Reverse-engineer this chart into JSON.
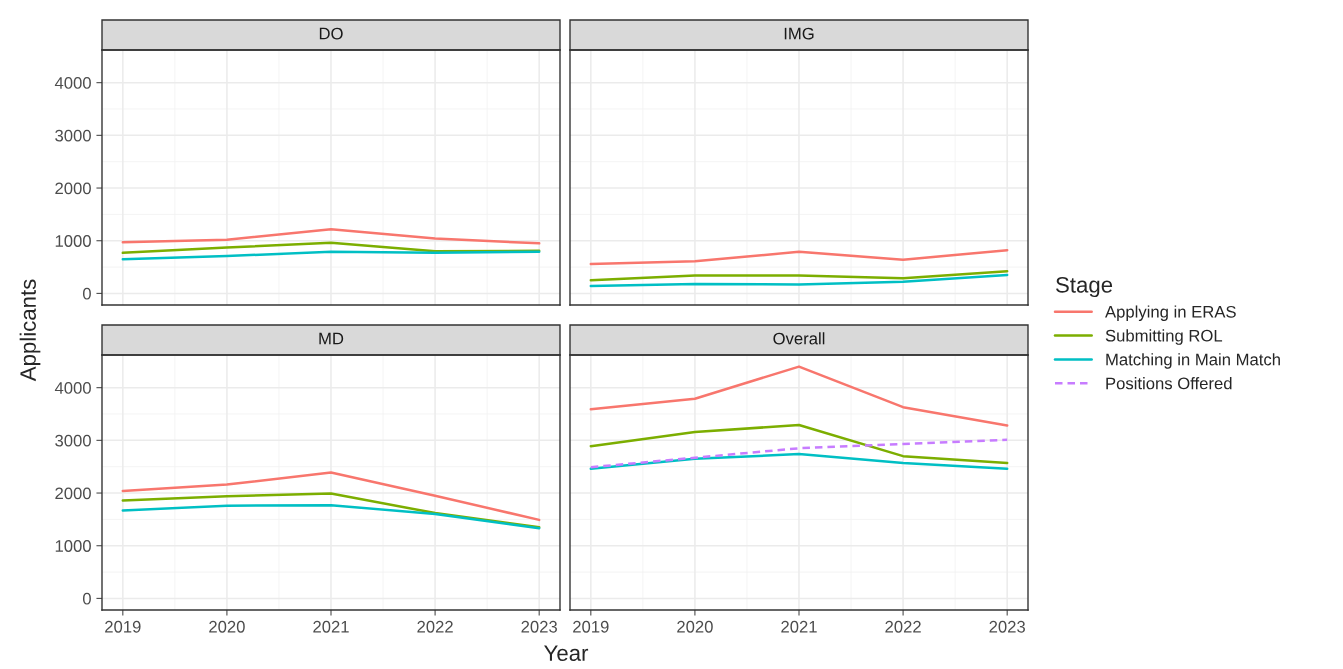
{
  "chart_data": [
    {
      "type": "line",
      "title": "DO",
      "ylabel": "Applicants",
      "x": [
        2019,
        2020,
        2021,
        2022,
        2023
      ],
      "xlim": [
        2018.8,
        2023.2
      ],
      "xticks": [
        2019,
        2020,
        2021,
        2022,
        2023
      ],
      "ylim": [
        -220,
        4620
      ],
      "yticks": [
        0,
        1000,
        2000,
        3000,
        4000
      ],
      "grid": true,
      "tick_labels": "y",
      "series": [
        {
          "color": "#f8766d",
          "values": [
            970,
            1020,
            1220,
            1040,
            950
          ]
        },
        {
          "color": "#7cae00",
          "values": [
            770,
            870,
            960,
            800,
            810
          ]
        },
        {
          "color": "#00bfc4",
          "values": [
            650,
            710,
            790,
            770,
            790
          ]
        }
      ]
    },
    {
      "type": "line",
      "title": "IMG",
      "x": [
        2019,
        2020,
        2021,
        2022,
        2023
      ],
      "xlim": [
        2018.8,
        2023.2
      ],
      "xticks": [
        2019,
        2020,
        2021,
        2022,
        2023
      ],
      "ylim": [
        -220,
        4620
      ],
      "yticks": [
        0,
        1000,
        2000,
        3000,
        4000
      ],
      "grid": true,
      "tick_labels": false,
      "series": [
        {
          "color": "#f8766d",
          "values": [
            560,
            610,
            790,
            640,
            820
          ]
        },
        {
          "color": "#7cae00",
          "values": [
            250,
            340,
            340,
            290,
            420
          ]
        },
        {
          "color": "#00bfc4",
          "values": [
            140,
            180,
            170,
            220,
            350
          ]
        }
      ]
    },
    {
      "type": "line",
      "title": "MD",
      "xlabel": "Year",
      "x": [
        2019,
        2020,
        2021,
        2022,
        2023
      ],
      "xlim": [
        2018.8,
        2023.2
      ],
      "xticks": [
        2019,
        2020,
        2021,
        2022,
        2023
      ],
      "ylim": [
        -220,
        4620
      ],
      "yticks": [
        0,
        1000,
        2000,
        3000,
        4000
      ],
      "grid": true,
      "series": [
        {
          "color": "#f8766d",
          "values": [
            2040,
            2160,
            2390,
            1950,
            1490
          ]
        },
        {
          "color": "#7cae00",
          "values": [
            1860,
            1940,
            1990,
            1620,
            1350
          ]
        },
        {
          "color": "#00bfc4",
          "values": [
            1670,
            1760,
            1770,
            1600,
            1330
          ]
        }
      ]
    },
    {
      "type": "line",
      "title": "Overall",
      "legend_title": "Stage",
      "legend": "right",
      "x": [
        2019,
        2020,
        2021,
        2022,
        2023
      ],
      "xlim": [
        2018.8,
        2023.2
      ],
      "xticks": [
        2019,
        2020,
        2021,
        2022,
        2023
      ],
      "ylim": [
        -220,
        4620
      ],
      "yticks": [
        0,
        1000,
        2000,
        3000,
        4000
      ],
      "grid": true,
      "tick_labels": "x",
      "series": [
        {
          "name": "Applying in ERAS",
          "color": "#f8766d",
          "values": [
            3590,
            3790,
            4400,
            3630,
            3280
          ]
        },
        {
          "name": "Submitting ROL",
          "color": "#7cae00",
          "values": [
            2890,
            3160,
            3290,
            2700,
            2570
          ]
        },
        {
          "name": "Matching in Main Match",
          "color": "#00bfc4",
          "values": [
            2460,
            2650,
            2740,
            2570,
            2460
          ]
        },
        {
          "name": "Positions Offered",
          "color": "#c77cff",
          "line_style": "dashed",
          "values": [
            2490,
            2670,
            2850,
            2930,
            3010
          ]
        }
      ]
    }
  ]
}
